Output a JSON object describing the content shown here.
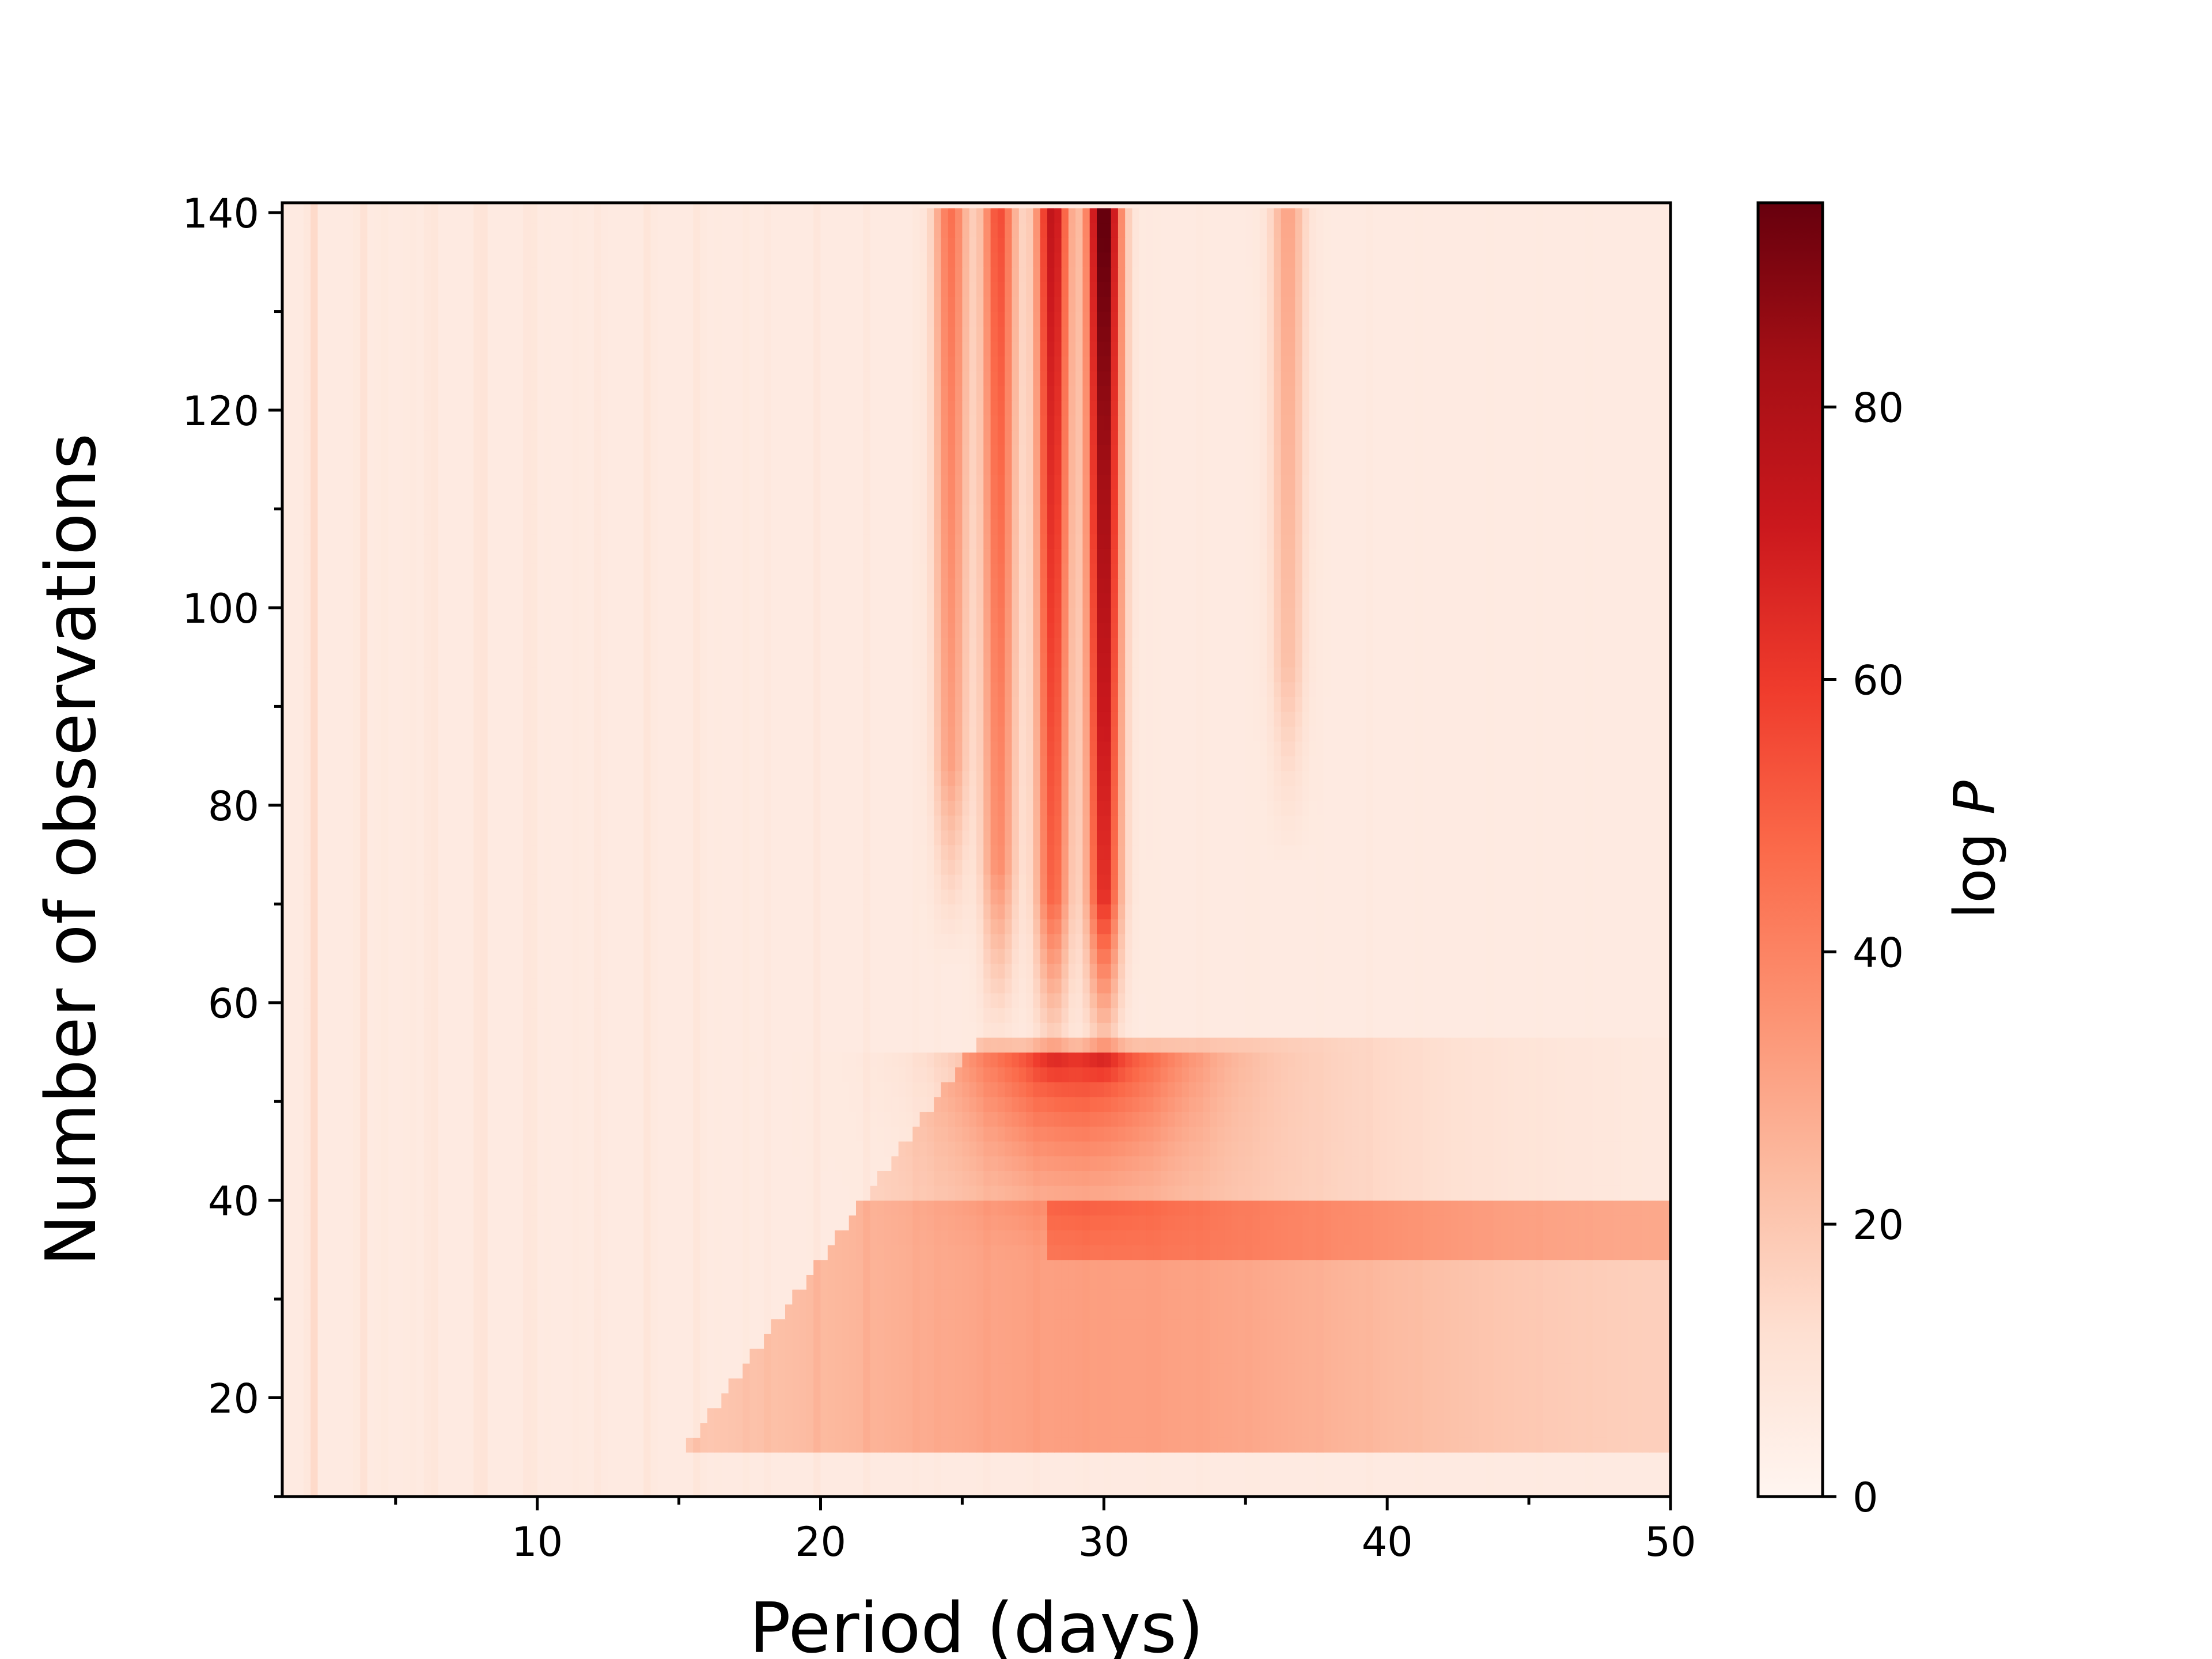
{
  "chart_data": {
    "type": "heatmap",
    "title": "",
    "xlabel": "Period (days)",
    "ylabel": "Number of observations",
    "xlim": [
      1,
      50
    ],
    "ylim": [
      10,
      141
    ],
    "x_ticks": [
      10,
      20,
      30,
      40,
      50
    ],
    "y_ticks": [
      20,
      40,
      60,
      80,
      100,
      120,
      140
    ],
    "colormap": "Reds",
    "colorbar": {
      "label_text": "log ",
      "label_symbol": "P",
      "range": [
        0,
        95
      ],
      "ticks": [
        0,
        20,
        40,
        60,
        80
      ]
    },
    "features": [
      {
        "x": 30.0,
        "y_range": [
          57,
          141
        ],
        "peak_value": 95
      },
      {
        "x": 28.2,
        "y_range": [
          57,
          141
        ],
        "peak_value": 70
      },
      {
        "x": 26.3,
        "y_range": [
          60,
          141
        ],
        "peak_value": 50
      },
      {
        "x": 24.6,
        "y_range": [
          70,
          141
        ],
        "peak_value": 40
      },
      {
        "x": 29.0,
        "y_range": [
          40,
          55
        ],
        "peak_value": 40
      },
      {
        "x": 36.5,
        "y_range": [
          80,
          141
        ],
        "peak_value": 25
      }
    ],
    "grid": false,
    "legend": "none"
  }
}
